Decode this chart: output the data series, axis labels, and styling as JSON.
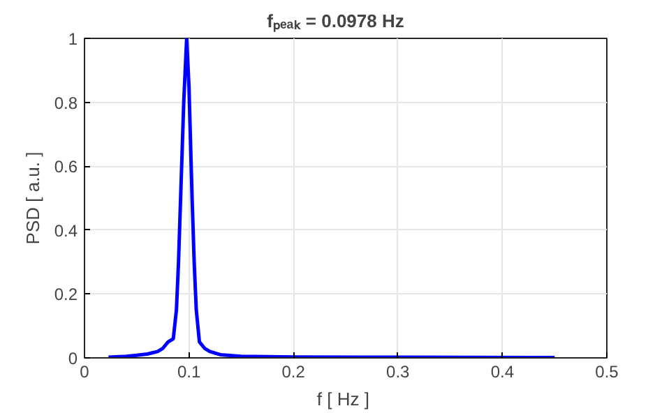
{
  "chart_data": {
    "type": "line",
    "title": "fₚₑₐₖ  =  0.0978   Hz",
    "xlabel": "f  [ Hz ]",
    "ylabel": "PSD [ a.u. ]",
    "xlim": [
      0,
      0.5
    ],
    "ylim": [
      0,
      1
    ],
    "xticks": [
      0,
      0.1,
      0.2,
      0.3,
      0.4,
      0.5
    ],
    "yticks": [
      0,
      0.2,
      0.4,
      0.6,
      0.8,
      1
    ],
    "grid": true,
    "line_style": "solid",
    "series": [
      {
        "color": "#0000ff",
        "x": [
          0.023,
          0.04,
          0.05,
          0.06,
          0.07,
          0.075,
          0.08,
          0.085,
          0.088,
          0.09,
          0.092,
          0.095,
          0.0978,
          0.1,
          0.103,
          0.105,
          0.107,
          0.11,
          0.115,
          0.12,
          0.13,
          0.15,
          0.2,
          0.3,
          0.45
        ],
        "values": [
          0.002,
          0.005,
          0.008,
          0.012,
          0.02,
          0.03,
          0.05,
          0.06,
          0.15,
          0.3,
          0.5,
          0.8,
          1.0,
          0.85,
          0.5,
          0.3,
          0.15,
          0.05,
          0.03,
          0.02,
          0.01,
          0.005,
          0.003,
          0.002,
          0.001
        ]
      }
    ]
  }
}
